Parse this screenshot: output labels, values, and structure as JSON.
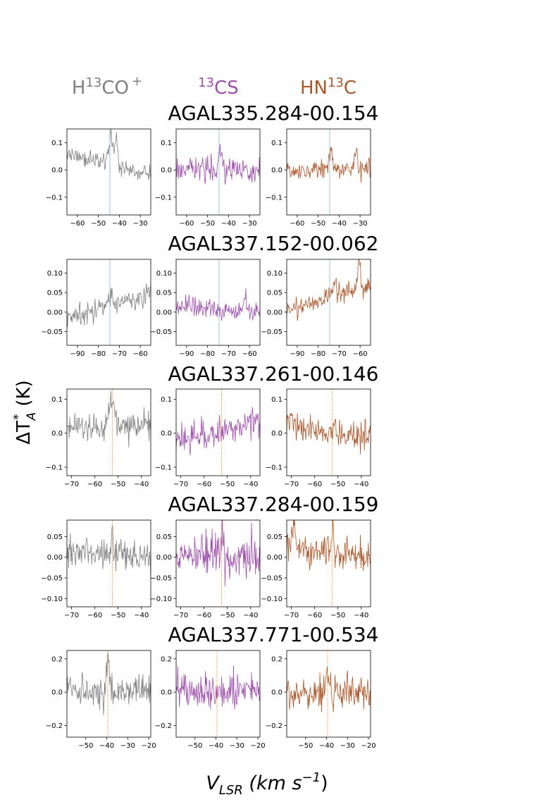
{
  "header": {
    "molecules": [
      {
        "pre": "H",
        "sup": "13",
        "post": "CO",
        "sup2": "+",
        "color": "#808080"
      },
      {
        "pre": "",
        "sup": "13",
        "post": "CS",
        "sup2": "",
        "color": "#9b4fa8"
      },
      {
        "pre": "HN",
        "sup": "13",
        "post": "C",
        "sup2": "",
        "color": "#a9582b"
      }
    ]
  },
  "ylabel": {
    "main": "ΔT",
    "sub": "A",
    "sup": "*",
    "unit": "(K)"
  },
  "xlabel": {
    "main": "V",
    "sub": "LSR",
    "unit_pre": "(km s",
    "unit_sup": "−1",
    "unit_post": ")"
  },
  "colors": {
    "series": [
      "#808080",
      "#9b4fa8",
      "#a9582b"
    ],
    "line_blue": "#8fb3d3",
    "line_orange": "#ef8a2b"
  },
  "chart_data": [
    {
      "type": "line",
      "title": "AGAL335.284-00.154",
      "xlim": [
        -65,
        -25
      ],
      "ylim": [
        -0.165,
        0.15
      ],
      "xticks": [
        -60,
        -50,
        -40,
        -30
      ],
      "yticks": [
        0.1,
        0.0,
        -0.1
      ],
      "ytick_labels": [
        "0.1",
        "0.0",
        "−0.1"
      ],
      "vline": -44.5,
      "vline_color": "blue",
      "series_names": [
        "H13CO+",
        "13CS",
        "HN13C"
      ],
      "noise": [
        0.022,
        0.028,
        0.025
      ],
      "features": [
        {
          "trend": [
            0.02,
            -0.002
          ],
          "peaks": [
            [
              -44,
              0.09,
              1.2
            ],
            [
              -41.5,
              0.11,
              0.6
            ]
          ]
        },
        {
          "trend": [
            0.0,
            0.0
          ],
          "peaks": [
            [
              -44,
              0.06,
              1.0
            ]
          ]
        },
        {
          "trend": [
            0.0,
            0.0
          ],
          "peaks": [
            [
              -44,
              0.06,
              0.8
            ],
            [
              -32,
              0.08,
              0.5
            ]
          ]
        }
      ],
      "seed": 11
    },
    {
      "type": "line",
      "title": "AGAL337.152-00.062",
      "xlim": [
        -95,
        -55
      ],
      "ylim": [
        -0.085,
        0.135
      ],
      "xticks": [
        -90,
        -80,
        -70,
        -60
      ],
      "yticks": [
        0.1,
        0.05,
        0.0,
        -0.05
      ],
      "ytick_labels": [
        "0.10",
        "0.05",
        "0.00",
        "−0.05"
      ],
      "vline": -74.5,
      "vline_color": "blue",
      "series_names": [
        "H13CO+",
        "13CS",
        "HN13C"
      ],
      "noise": [
        0.018,
        0.016,
        0.016
      ],
      "features": [
        {
          "trend": [
            0.015,
            0.0015
          ],
          "peaks": [
            [
              -74,
              0.03,
              1.0
            ]
          ]
        },
        {
          "trend": [
            0.005,
            -0.0005
          ],
          "peaks": [
            [
              -62,
              0.03,
              0.6
            ]
          ]
        },
        {
          "trend": [
            0.035,
            0.0015
          ],
          "peaks": [
            [
              -60.5,
              0.07,
              0.7
            ],
            [
              -72,
              0.02,
              1.2
            ]
          ]
        }
      ],
      "seed": 23
    },
    {
      "type": "line",
      "title": "AGAL337.261-00.146",
      "xlim": [
        -72,
        -36
      ],
      "ylim": [
        -0.125,
        0.13
      ],
      "xticks": [
        -70,
        -60,
        -50,
        -40
      ],
      "yticks": [
        0.1,
        0.0,
        -0.1
      ],
      "ytick_labels": [
        "0.1",
        "0.0",
        "−0.1"
      ],
      "vline": -52.5,
      "vline_color": "orange",
      "series_names": [
        "H13CO+",
        "13CS",
        "HN13C"
      ],
      "noise": [
        0.028,
        0.03,
        0.028
      ],
      "features": [
        {
          "trend": [
            0.02,
            0.0
          ],
          "peaks": [
            [
              -52.5,
              0.09,
              0.9
            ]
          ]
        },
        {
          "trend": [
            0.0,
            0.0015
          ],
          "peaks": [
            [
              -38,
              0.05,
              0.6
            ]
          ]
        },
        {
          "trend": [
            0.0,
            -0.001
          ],
          "peaks": [
            [
              -70,
              0.04,
              1.2
            ]
          ]
        }
      ],
      "seed": 37
    },
    {
      "type": "line",
      "title": "AGAL337.284-00.159",
      "xlim": [
        -72,
        -36
      ],
      "ylim": [
        -0.12,
        0.09
      ],
      "xticks": [
        -70,
        -60,
        -50,
        -40
      ],
      "yticks": [
        0.05,
        0.0,
        -0.05,
        -0.1
      ],
      "ytick_labels": [
        "0.05",
        "0.00",
        "−0.05",
        "−0.10"
      ],
      "vline": -52.5,
      "vline_color": "orange",
      "series_names": [
        "H13CO+",
        "13CS",
        "HN13C"
      ],
      "noise": [
        0.025,
        0.032,
        0.026
      ],
      "features": [
        {
          "trend": [
            0.005,
            0.0
          ],
          "peaks": [
            [
              -52.5,
              0.04,
              0.8
            ]
          ]
        },
        {
          "trend": [
            0.0,
            0.0
          ],
          "peaks": [
            [
              -52.5,
              0.05,
              0.6
            ]
          ]
        },
        {
          "trend": [
            0.01,
            -0.0008
          ],
          "peaks": [
            [
              -52.5,
              0.04,
              0.6
            ],
            [
              -69,
              0.04,
              0.8
            ]
          ]
        }
      ],
      "seed": 53
    },
    {
      "type": "line",
      "title": "AGAL337.771-00.534",
      "xlim": [
        -59,
        -19
      ],
      "ylim": [
        -0.27,
        0.25
      ],
      "xticks": [
        -50,
        -40,
        -30,
        -20
      ],
      "yticks": [
        0.2,
        0.0,
        -0.2
      ],
      "ytick_labels": [
        "0.2",
        "0.0",
        "−0.2"
      ],
      "vline": -39.5,
      "vline_color": "orange",
      "series_names": [
        "H13CO+",
        "13CS",
        "HN13C"
      ],
      "noise": [
        0.06,
        0.075,
        0.07
      ],
      "features": [
        {
          "trend": [
            0.0,
            0.0
          ],
          "peaks": [
            [
              -39.5,
              0.18,
              0.7
            ]
          ]
        },
        {
          "trend": [
            0.0,
            0.0
          ],
          "peaks": [
            [
              -55,
              0.06,
              1.0
            ]
          ]
        },
        {
          "trend": [
            0.0,
            0.0
          ],
          "peaks": [
            [
              -39.5,
              0.15,
              0.6
            ]
          ]
        }
      ],
      "seed": 71
    }
  ]
}
